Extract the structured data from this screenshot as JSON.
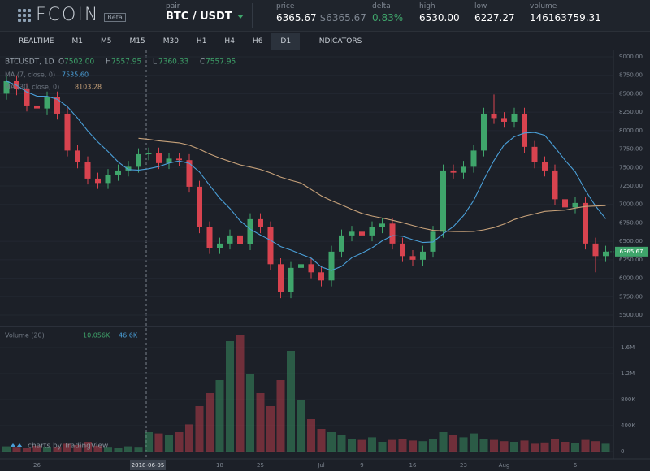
{
  "header": {
    "logo": "FCOIN",
    "badge": "Beta",
    "pair_label": "pair",
    "pair": "BTC / USDT",
    "stats": [
      {
        "label": "price",
        "value": "6365.67",
        "sub": "$6365.67"
      },
      {
        "label": "delta",
        "value": "0.83%"
      },
      {
        "label": "high",
        "value": "6530.00"
      },
      {
        "label": "low",
        "value": "6227.27"
      },
      {
        "label": "volume",
        "value": "146163759.31"
      }
    ]
  },
  "tabs": [
    "REALTIME",
    "M1",
    "M5",
    "M15",
    "M30",
    "H1",
    "H4",
    "H6",
    "D1",
    "INDICATORS"
  ],
  "active_tab": 8,
  "chart_data": {
    "type": "candlestick",
    "symbol": "BTCUSDT, 1D",
    "ohlc_labels": [
      {
        "key": "O",
        "value": "7502.00"
      },
      {
        "key": "H",
        "value": "7557.95"
      },
      {
        "key": "L",
        "value": "7360.33"
      },
      {
        "key": "C",
        "value": "7557.95"
      }
    ],
    "indicators": [
      {
        "name": "MA (7, close, 0)",
        "period": 7,
        "value_label": "7535.60",
        "color": "#4a9fd8"
      },
      {
        "name": "MA (30, close, 0)",
        "period": 30,
        "value_label": "8103.28",
        "color": "#c8a27a"
      }
    ],
    "crosshair_date": "2018-06-05",
    "last_price_label": "6365.67",
    "credit": "charts by TradingView",
    "up_color": "#3fa56b",
    "down_color": "#d8434f",
    "categories": [
      null,
      null,
      null,
      "26",
      null,
      null,
      null,
      null,
      null,
      null,
      null,
      null,
      null,
      null,
      null,
      null,
      null,
      null,
      null,
      null,
      null,
      "18",
      null,
      null,
      null,
      "25",
      null,
      null,
      null,
      null,
      null,
      "Jul",
      null,
      null,
      null,
      "9",
      null,
      null,
      null,
      null,
      "16",
      null,
      null,
      null,
      null,
      "23",
      null,
      null,
      null,
      "Aug",
      null,
      null,
      null,
      null,
      null,
      null,
      "6",
      null,
      null,
      null
    ],
    "open": [
      8500,
      8670,
      8560,
      8340,
      8300,
      8450,
      8230,
      7730,
      7570,
      7350,
      7290,
      7400,
      7460,
      7510,
      7680,
      7690,
      7560,
      7620,
      7600,
      7240,
      6690,
      6410,
      6470,
      6580,
      6460,
      6800,
      6690,
      6190,
      5810,
      6140,
      6190,
      6080,
      5970,
      6360,
      6580,
      6630,
      6580,
      6690,
      6740,
      6470,
      6300,
      6250,
      6360,
      6630,
      7460,
      7430,
      7510,
      7730,
      8230,
      8170,
      8120,
      8230,
      7780,
      7570,
      7460,
      7070,
      6960,
      7020,
      6470,
      6300
    ],
    "high": [
      8750,
      8750,
      8640,
      8420,
      8530,
      8530,
      8310,
      7810,
      7650,
      7430,
      7480,
      7540,
      7590,
      7760,
      7770,
      7770,
      7700,
      7700,
      7680,
      7320,
      6770,
      6550,
      6660,
      6660,
      6880,
      6880,
      6770,
      6270,
      6220,
      6270,
      6270,
      6160,
      6440,
      6660,
      6710,
      6710,
      6770,
      6820,
      6820,
      6550,
      6380,
      6440,
      6710,
      7540,
      7540,
      7590,
      7810,
      8310,
      8490,
      8250,
      8310,
      8310,
      7860,
      7650,
      7540,
      7150,
      7100,
      7100,
      6550,
      6440
    ],
    "low": [
      8420,
      8480,
      8260,
      8220,
      8220,
      8150,
      7650,
      7490,
      7270,
      7210,
      7210,
      7320,
      7380,
      7430,
      7600,
      7480,
      7480,
      7520,
      7160,
      6610,
      6330,
      6330,
      6390,
      5550,
      6380,
      6610,
      6110,
      5730,
      5730,
      6060,
      6000,
      5890,
      5890,
      6280,
      6500,
      6500,
      6500,
      6610,
      6390,
      6220,
      6170,
      6170,
      6280,
      6550,
      7350,
      7350,
      7430,
      7650,
      8090,
      8040,
      8040,
      7700,
      7490,
      7380,
      6990,
      6880,
      6880,
      6390,
      6080,
      6220
    ],
    "close": [
      8670,
      8560,
      8340,
      8300,
      8450,
      8230,
      7730,
      7570,
      7350,
      7290,
      7400,
      7460,
      7510,
      7680,
      7690,
      7560,
      7620,
      7600,
      7240,
      6690,
      6410,
      6470,
      6580,
      6460,
      6800,
      6690,
      6190,
      5810,
      6140,
      6190,
      6080,
      5970,
      6360,
      6580,
      6630,
      6580,
      6690,
      6740,
      6470,
      6300,
      6250,
      6360,
      6630,
      7460,
      7430,
      7510,
      7730,
      8230,
      8170,
      8120,
      8230,
      7780,
      7570,
      7460,
      7070,
      6960,
      7020,
      6470,
      6300,
      6360
    ],
    "ylim": [
      5500,
      9000
    ],
    "yticks": [
      {
        "value": 9000,
        "label": "9000.00"
      },
      {
        "value": 8750,
        "label": "8750.00"
      },
      {
        "value": 8500,
        "label": "8500.00"
      },
      {
        "value": 8250,
        "label": "8250.00"
      },
      {
        "value": 8000,
        "label": "8000.00"
      },
      {
        "value": 7750,
        "label": "7750.00"
      },
      {
        "value": 7500,
        "label": "7500.00"
      },
      {
        "value": 7250,
        "label": "7250.00"
      },
      {
        "value": 7000,
        "label": "7000.00"
      },
      {
        "value": 6750,
        "label": "6750.00"
      },
      {
        "value": 6500,
        "label": "6500.00"
      },
      {
        "value": 6250,
        "label": "6250.00"
      },
      {
        "value": 6000,
        "label": "6000.00"
      },
      {
        "value": 5750,
        "label": "5750.00"
      },
      {
        "value": 5500,
        "label": "5500.00"
      }
    ],
    "volume": {
      "name": "Volume (20)",
      "labels": [
        "10.056K",
        "46.6K"
      ],
      "values": [
        80000,
        60000,
        50000,
        90000,
        70000,
        60000,
        120000,
        100000,
        150000,
        90000,
        60000,
        50000,
        80000,
        60000,
        300000,
        280000,
        250000,
        300000,
        420000,
        700000,
        900000,
        1100000,
        1700000,
        1800000,
        1200000,
        900000,
        700000,
        1100000,
        1550000,
        800000,
        500000,
        350000,
        300000,
        250000,
        200000,
        180000,
        220000,
        150000,
        180000,
        200000,
        170000,
        160000,
        200000,
        300000,
        250000,
        220000,
        280000,
        200000,
        180000,
        160000,
        150000,
        170000,
        120000,
        140000,
        200000,
        150000,
        130000,
        180000,
        160000,
        120000
      ],
      "ylim": [
        0,
        2000000
      ],
      "yticks": [
        0,
        {
          "value": 400000,
          "label": "400K"
        },
        {
          "value": 800000,
          "label": "800K"
        },
        {
          "value": 1200000,
          "label": "1.2M"
        },
        {
          "value": 1600000,
          "label": "1.6M"
        }
      ]
    }
  }
}
